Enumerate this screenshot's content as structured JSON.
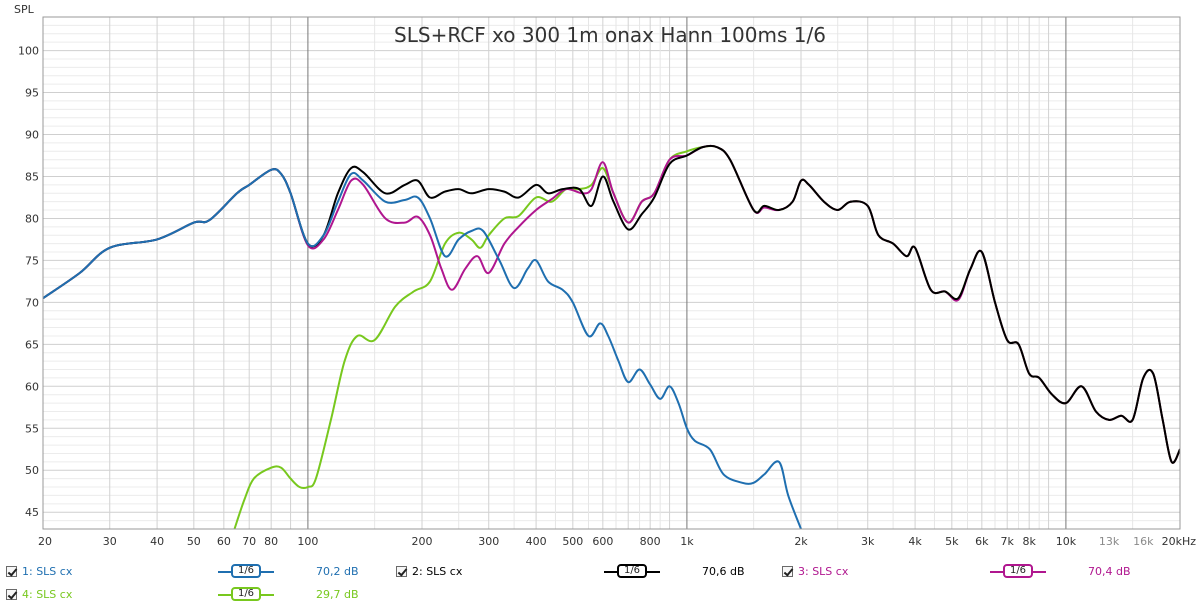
{
  "chart_data": {
    "type": "line",
    "title": "SLS+RCF xo 300 1m onax Hann 100ms 1/6",
    "ylabel": "SPL",
    "xlabel": "",
    "x_scale": "log",
    "xlim": [
      20,
      20000
    ],
    "ylim": [
      43,
      104
    ],
    "y_ticks": [
      45,
      50,
      55,
      60,
      65,
      70,
      75,
      80,
      85,
      90,
      95,
      100
    ],
    "x_ticks": [
      {
        "v": 20,
        "label": "20"
      },
      {
        "v": 30,
        "label": "30"
      },
      {
        "v": 40,
        "label": "40"
      },
      {
        "v": 50,
        "label": "50"
      },
      {
        "v": 60,
        "label": "60"
      },
      {
        "v": 70,
        "label": "70"
      },
      {
        "v": 80,
        "label": "80"
      },
      {
        "v": 100,
        "label": "100"
      },
      {
        "v": 200,
        "label": "200"
      },
      {
        "v": 300,
        "label": "300"
      },
      {
        "v": 400,
        "label": "400"
      },
      {
        "v": 500,
        "label": "500"
      },
      {
        "v": 600,
        "label": "600"
      },
      {
        "v": 800,
        "label": "800"
      },
      {
        "v": 1000,
        "label": "1k"
      },
      {
        "v": 2000,
        "label": "2k"
      },
      {
        "v": 3000,
        "label": "3k"
      },
      {
        "v": 4000,
        "label": "4k"
      },
      {
        "v": 5000,
        "label": "5k"
      },
      {
        "v": 6000,
        "label": "6k"
      },
      {
        "v": 7000,
        "label": "7k"
      },
      {
        "v": 8000,
        "label": "8k"
      },
      {
        "v": 10000,
        "label": "10k"
      },
      {
        "v": 13000,
        "label": "13k"
      },
      {
        "v": 16000,
        "label": "16k"
      },
      {
        "v": 20000,
        "label": "20kHz"
      }
    ],
    "series": [
      {
        "name": "1: SLS cx",
        "color": "#1f6fb0",
        "smoothing": "1/6",
        "level": "70,2 dB",
        "points": [
          [
            20,
            70.5
          ],
          [
            25,
            73.5
          ],
          [
            30,
            76.5
          ],
          [
            40,
            77.5
          ],
          [
            50,
            79.5
          ],
          [
            55,
            79.8
          ],
          [
            65,
            83
          ],
          [
            70,
            84
          ],
          [
            80,
            85.8
          ],
          [
            85,
            85.3
          ],
          [
            90,
            83
          ],
          [
            100,
            77
          ],
          [
            110,
            78
          ],
          [
            120,
            82
          ],
          [
            130,
            85.3
          ],
          [
            140,
            84.5
          ],
          [
            160,
            82
          ],
          [
            180,
            82.2
          ],
          [
            195,
            82.5
          ],
          [
            210,
            80
          ],
          [
            230,
            75.5
          ],
          [
            250,
            77.5
          ],
          [
            270,
            78.5
          ],
          [
            290,
            78.5
          ],
          [
            320,
            75
          ],
          [
            350,
            71.7
          ],
          [
            380,
            74
          ],
          [
            400,
            75
          ],
          [
            430,
            72.5
          ],
          [
            470,
            71.5
          ],
          [
            500,
            70
          ],
          [
            550,
            66
          ],
          [
            590,
            67.5
          ],
          [
            620,
            66
          ],
          [
            660,
            63
          ],
          [
            700,
            60.5
          ],
          [
            750,
            62
          ],
          [
            800,
            60.2
          ],
          [
            850,
            58.5
          ],
          [
            900,
            60
          ],
          [
            950,
            58
          ],
          [
            1000,
            55
          ],
          [
            1050,
            53.5
          ],
          [
            1150,
            52.5
          ],
          [
            1250,
            49.5
          ],
          [
            1400,
            48.5
          ],
          [
            1500,
            48.5
          ],
          [
            1600,
            49.5
          ],
          [
            1750,
            51
          ],
          [
            1850,
            47
          ],
          [
            2000,
            43
          ]
        ]
      },
      {
        "name": "2: SLS cx",
        "color": "#000000",
        "smoothing": "1/6",
        "level": "70,6 dB",
        "points": [
          [
            20,
            70.5
          ],
          [
            25,
            73.5
          ],
          [
            30,
            76.5
          ],
          [
            40,
            77.5
          ],
          [
            50,
            79.5
          ],
          [
            55,
            79.8
          ],
          [
            65,
            83
          ],
          [
            70,
            84
          ],
          [
            80,
            85.8
          ],
          [
            85,
            85.3
          ],
          [
            90,
            83
          ],
          [
            100,
            77
          ],
          [
            110,
            78
          ],
          [
            120,
            83
          ],
          [
            130,
            86
          ],
          [
            140,
            85.5
          ],
          [
            160,
            83
          ],
          [
            180,
            84
          ],
          [
            195,
            84.5
          ],
          [
            210,
            82.5
          ],
          [
            230,
            83.2
          ],
          [
            250,
            83.5
          ],
          [
            270,
            83
          ],
          [
            300,
            83.5
          ],
          [
            330,
            83.2
          ],
          [
            360,
            82.5
          ],
          [
            400,
            84
          ],
          [
            430,
            83
          ],
          [
            470,
            83.5
          ],
          [
            520,
            83.5
          ],
          [
            560,
            81.5
          ],
          [
            600,
            85
          ],
          [
            640,
            82
          ],
          [
            700,
            78.7
          ],
          [
            760,
            80.5
          ],
          [
            820,
            82.5
          ],
          [
            900,
            86.5
          ],
          [
            1000,
            87.5
          ],
          [
            1100,
            88.5
          ],
          [
            1200,
            88.5
          ],
          [
            1300,
            87
          ],
          [
            1500,
            81
          ],
          [
            1600,
            81.5
          ],
          [
            1750,
            81
          ],
          [
            1900,
            82
          ],
          [
            2000,
            84.5
          ],
          [
            2100,
            84
          ],
          [
            2300,
            82
          ],
          [
            2500,
            81
          ],
          [
            2700,
            82
          ],
          [
            3000,
            81.5
          ],
          [
            3200,
            78
          ],
          [
            3500,
            77
          ],
          [
            3800,
            75.5
          ],
          [
            4000,
            76.5
          ],
          [
            4400,
            71.5
          ],
          [
            4800,
            71.3
          ],
          [
            5200,
            70.5
          ],
          [
            5600,
            74
          ],
          [
            6000,
            76
          ],
          [
            6500,
            70
          ],
          [
            7000,
            65.5
          ],
          [
            7500,
            65
          ],
          [
            8000,
            61.5
          ],
          [
            8500,
            61
          ],
          [
            9200,
            59
          ],
          [
            10000,
            58
          ],
          [
            11000,
            60
          ],
          [
            12000,
            57
          ],
          [
            13000,
            56
          ],
          [
            14000,
            56.5
          ],
          [
            15000,
            56
          ],
          [
            16000,
            61
          ],
          [
            17000,
            61.5
          ],
          [
            18000,
            56
          ],
          [
            19000,
            51
          ],
          [
            20000,
            52.5
          ]
        ]
      },
      {
        "name": "3: SLS cx",
        "color": "#b0168f",
        "smoothing": "1/6",
        "level": "70,4 dB",
        "points": [
          [
            20,
            70.5
          ],
          [
            25,
            73.5
          ],
          [
            30,
            76.5
          ],
          [
            40,
            77.5
          ],
          [
            50,
            79.5
          ],
          [
            55,
            79.8
          ],
          [
            65,
            83
          ],
          [
            70,
            84
          ],
          [
            80,
            85.8
          ],
          [
            85,
            85.3
          ],
          [
            90,
            83
          ],
          [
            100,
            76.8
          ],
          [
            110,
            77.5
          ],
          [
            120,
            81
          ],
          [
            130,
            84.5
          ],
          [
            140,
            84
          ],
          [
            160,
            80
          ],
          [
            180,
            79.5
          ],
          [
            195,
            80.2
          ],
          [
            210,
            78
          ],
          [
            225,
            74
          ],
          [
            240,
            71.5
          ],
          [
            260,
            74
          ],
          [
            280,
            75.5
          ],
          [
            300,
            73.5
          ],
          [
            330,
            77
          ],
          [
            360,
            79
          ],
          [
            400,
            81
          ],
          [
            440,
            82.3
          ],
          [
            480,
            83.5
          ],
          [
            530,
            83
          ],
          [
            560,
            83.5
          ],
          [
            600,
            86.7
          ],
          [
            640,
            83
          ],
          [
            700,
            79.5
          ],
          [
            760,
            82
          ],
          [
            820,
            83
          ],
          [
            900,
            87
          ],
          [
            1000,
            87.5
          ],
          [
            1100,
            88.5
          ],
          [
            1200,
            88.5
          ],
          [
            1300,
            87
          ],
          [
            1500,
            81
          ],
          [
            1600,
            81.3
          ],
          [
            1750,
            81
          ],
          [
            1900,
            82
          ],
          [
            2000,
            84.5
          ],
          [
            2100,
            84
          ],
          [
            2300,
            82
          ],
          [
            2500,
            81
          ],
          [
            2700,
            82
          ],
          [
            3000,
            81.5
          ],
          [
            3200,
            78
          ],
          [
            3500,
            77
          ],
          [
            3800,
            75.5
          ],
          [
            4000,
            76.5
          ],
          [
            4400,
            71.5
          ],
          [
            4800,
            71.3
          ],
          [
            5200,
            70.3
          ],
          [
            5600,
            74
          ],
          [
            6000,
            76
          ],
          [
            6500,
            70
          ],
          [
            7000,
            65.5
          ],
          [
            7500,
            65
          ],
          [
            8000,
            61.5
          ],
          [
            8500,
            61
          ],
          [
            9200,
            59
          ],
          [
            10000,
            58
          ],
          [
            11000,
            60
          ],
          [
            12000,
            57
          ],
          [
            13000,
            56
          ],
          [
            14000,
            56.5
          ],
          [
            15000,
            56
          ],
          [
            16000,
            61
          ],
          [
            17000,
            61.5
          ],
          [
            18000,
            56
          ],
          [
            19000,
            51
          ],
          [
            20000,
            52.5
          ]
        ]
      },
      {
        "name": "4: SLS cx",
        "color": "#78c81e",
        "smoothing": "1/6",
        "level": "29,7 dB",
        "points": [
          [
            64,
            43
          ],
          [
            68,
            46.5
          ],
          [
            72,
            49
          ],
          [
            80,
            50.3
          ],
          [
            85,
            50.3
          ],
          [
            90,
            49
          ],
          [
            95,
            48
          ],
          [
            100,
            48
          ],
          [
            105,
            49
          ],
          [
            115,
            56
          ],
          [
            125,
            63
          ],
          [
            135,
            66
          ],
          [
            150,
            65.5
          ],
          [
            170,
            69.5
          ],
          [
            190,
            71.3
          ],
          [
            210,
            72.5
          ],
          [
            230,
            77
          ],
          [
            250,
            78.3
          ],
          [
            270,
            77.5
          ],
          [
            285,
            76.5
          ],
          [
            300,
            78
          ],
          [
            330,
            80
          ],
          [
            360,
            80.3
          ],
          [
            400,
            82.5
          ],
          [
            440,
            82
          ],
          [
            480,
            83.5
          ],
          [
            520,
            83.5
          ],
          [
            560,
            84
          ],
          [
            600,
            86
          ],
          [
            640,
            83
          ],
          [
            700,
            79.5
          ],
          [
            760,
            82
          ],
          [
            820,
            83
          ],
          [
            900,
            87
          ],
          [
            1000,
            88
          ],
          [
            1100,
            88.5
          ],
          [
            1200,
            88.5
          ],
          [
            1300,
            87
          ],
          [
            1500,
            81
          ],
          [
            1600,
            81.5
          ],
          [
            1750,
            81
          ],
          [
            1900,
            82
          ],
          [
            2000,
            84.5
          ],
          [
            2100,
            84
          ],
          [
            2300,
            82
          ],
          [
            2500,
            81
          ],
          [
            2700,
            82
          ],
          [
            3000,
            81.5
          ],
          [
            3200,
            78
          ],
          [
            3500,
            77
          ],
          [
            3800,
            75.5
          ],
          [
            4000,
            76.5
          ],
          [
            4400,
            71.5
          ],
          [
            4800,
            71.3
          ],
          [
            5200,
            70.5
          ],
          [
            5600,
            74
          ],
          [
            6000,
            76
          ],
          [
            6500,
            70
          ],
          [
            7000,
            65.5
          ],
          [
            7500,
            65
          ],
          [
            8000,
            61.5
          ],
          [
            8500,
            61
          ],
          [
            9200,
            59
          ],
          [
            10000,
            58
          ],
          [
            11000,
            60
          ],
          [
            12000,
            57
          ],
          [
            13000,
            56
          ],
          [
            14000,
            56.5
          ],
          [
            15000,
            56
          ],
          [
            16000,
            61
          ],
          [
            17000,
            61.5
          ],
          [
            18000,
            56
          ],
          [
            19000,
            51
          ],
          [
            20000,
            52.5
          ]
        ]
      }
    ]
  },
  "legend": {
    "items": [
      {
        "name": "1: SLS cx",
        "smoothing": "1/6",
        "level": "70,2 dB",
        "color": "#1f6fb0"
      },
      {
        "name": "2: SLS cx",
        "smoothing": "1/6",
        "level": "70,6 dB",
        "color": "#000000"
      },
      {
        "name": "3: SLS cx",
        "smoothing": "1/6",
        "level": "70,4 dB",
        "color": "#b0168f"
      },
      {
        "name": "4: SLS cx",
        "smoothing": "1/6",
        "level": "29,7 dB",
        "color": "#78c81e"
      }
    ]
  },
  "colors": {
    "grid_minor": "#d6d6d6",
    "grid_major": "#777777",
    "background": "#ffffff"
  }
}
